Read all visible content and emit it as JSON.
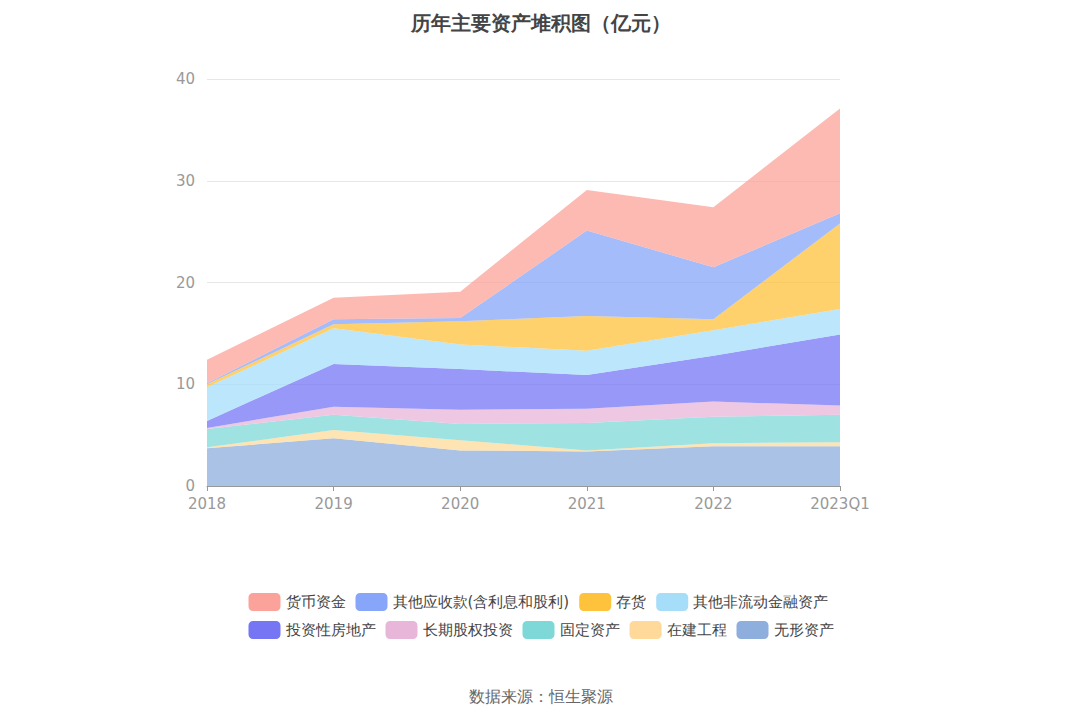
{
  "chart_data": {
    "type": "area",
    "title": "历年主要资产堆积图（亿元）",
    "source": "数据来源：恒生聚源",
    "categories": [
      "2018",
      "2019",
      "2020",
      "2021",
      "2022",
      "2023Q1"
    ],
    "stacked": true,
    "grid": true,
    "legend": "bottom",
    "ylim": [
      0,
      40
    ],
    "yticks": [
      0,
      10,
      20,
      30,
      40
    ],
    "series": [
      {
        "name": "货币资金",
        "color": "#fba39a",
        "values": [
          2.3,
          2.1,
          2.6,
          4.0,
          5.9,
          10.3
        ]
      },
      {
        "name": "其他应收款(含利息和股利)",
        "color": "#87a6fa",
        "values": [
          0.1,
          0.5,
          0.3,
          8.4,
          5.1,
          1.0
        ]
      },
      {
        "name": "存货",
        "color": "#fec23c",
        "values": [
          0.3,
          0.4,
          2.3,
          3.4,
          1.1,
          8.4
        ]
      },
      {
        "name": "其他非流动金融资产",
        "color": "#a6defa",
        "values": [
          3.3,
          3.5,
          2.4,
          2.4,
          2.5,
          2.5
        ]
      },
      {
        "name": "投资性房地产",
        "color": "#7676f5",
        "values": [
          0.7,
          4.2,
          4.0,
          3.3,
          4.5,
          7.0
        ]
      },
      {
        "name": "长期股权投资",
        "color": "#e8b6d9",
        "values": [
          0.1,
          0.8,
          1.4,
          1.4,
          1.5,
          0.9
        ]
      },
      {
        "name": "固定资产",
        "color": "#7fd8d8",
        "values": [
          1.8,
          1.5,
          1.6,
          2.7,
          2.6,
          2.7
        ]
      },
      {
        "name": "在建工程",
        "color": "#fed99a",
        "values": [
          0.1,
          0.8,
          1.0,
          0.1,
          0.3,
          0.4
        ]
      },
      {
        "name": "无形资产",
        "color": "#8eaede",
        "values": [
          3.7,
          4.7,
          3.5,
          3.4,
          3.9,
          3.9
        ]
      }
    ]
  }
}
